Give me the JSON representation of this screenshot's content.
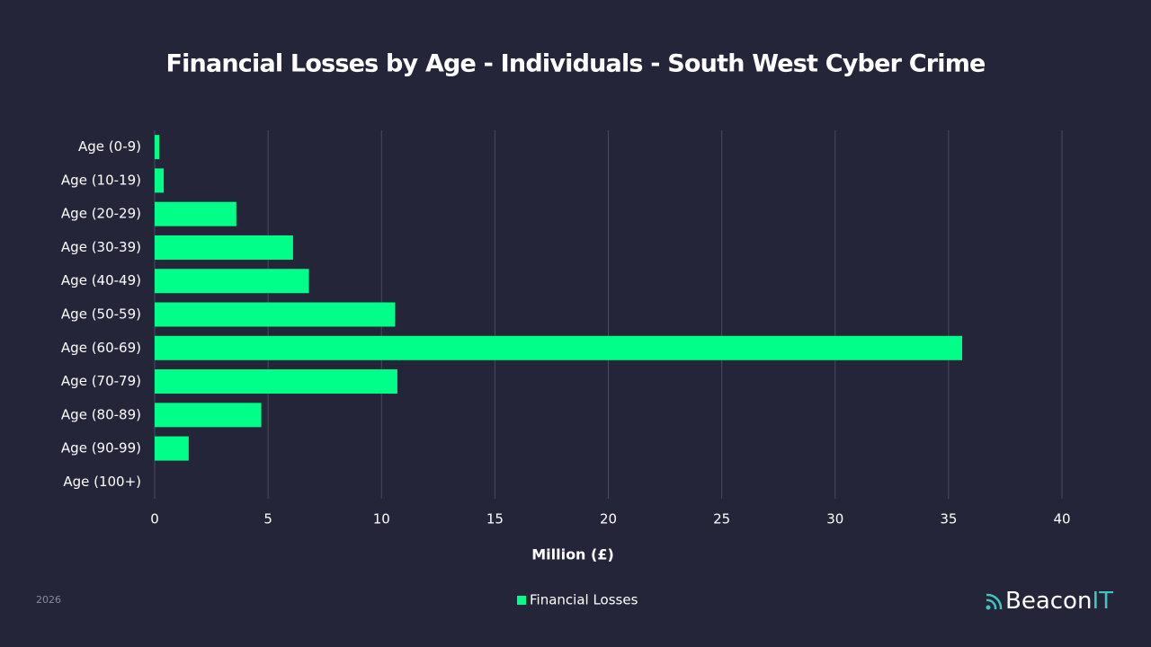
{
  "chart_data": {
    "type": "bar",
    "orientation": "horizontal",
    "title": "Financial Losses by Age - Individuals - South West Cyber Crime",
    "x_label": "Million (£)",
    "categories": [
      "Age (0-9)",
      "Age (10-19)",
      "Age (20-29)",
      "Age (30-39)",
      "Age (40-49)",
      "Age (50-59)",
      "Age (60-69)",
      "Age (70-79)",
      "Age (80-89)",
      "Age (90-99)",
      "Age (100+)"
    ],
    "series": [
      {
        "name": "Financial Losses",
        "color": "#00ff88",
        "values": [
          0.2,
          0.4,
          3.6,
          6.1,
          6.8,
          10.6,
          35.6,
          10.7,
          4.7,
          1.5,
          0
        ]
      }
    ],
    "xlim": [
      0,
      40
    ],
    "xticks": [
      0,
      5,
      10,
      15,
      20,
      25,
      30,
      35,
      40
    ],
    "grid": true,
    "legend": "bottom"
  },
  "footer": {
    "date": "2026",
    "brand": [
      "Beacon",
      "IT"
    ]
  }
}
